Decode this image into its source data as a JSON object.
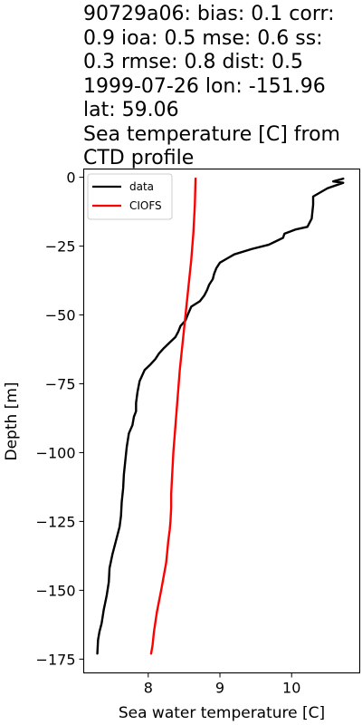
{
  "title_lines": [
    "90729a06: bias: 0.1  corr:",
    "0.9  ioa: 0.5  mse: 0.6  ss:",
    "0.3  rmse: 0.8  dist: 0.5",
    "1999-07-26 lon: -151.96",
    "lat: 59.06",
    "Sea temperature [C] from",
    "CTD profile"
  ],
  "chart_data": {
    "type": "line",
    "title": "90729a06: bias: 0.1  corr: 0.9  ioa: 0.5  mse: 0.6  ss: 0.3  rmse: 0.8  dist: 0.5 1999-07-26 lon: -151.96 lat: 59.06 Sea temperature [C] from CTD profile",
    "xlabel": "Sea water temperature [C]",
    "ylabel": "Depth [m]",
    "xlim": [
      7.1,
      10.95
    ],
    "ylim": [
      -180,
      3
    ],
    "xticks": [
      8,
      9,
      10
    ],
    "xtick_labels": [
      "8",
      "9",
      "10"
    ],
    "yticks": [
      0,
      -25,
      -50,
      -75,
      -100,
      -125,
      -150,
      -175
    ],
    "ytick_labels": [
      "0",
      "−25",
      "−50",
      "−75",
      "−100",
      "−125",
      "−150",
      "−175"
    ],
    "grid": false,
    "legend_position": "upper left",
    "series": [
      {
        "name": "data",
        "color": "#000000",
        "x": [
          10.72,
          10.58,
          10.72,
          10.5,
          10.3,
          10.3,
          10.28,
          10.22,
          10.05,
          9.9,
          9.88,
          9.8,
          9.68,
          9.45,
          9.2,
          9.1,
          9.0,
          8.95,
          8.92,
          8.9,
          8.85,
          8.82,
          8.78,
          8.72,
          8.6,
          8.55,
          8.52,
          8.45,
          8.42,
          8.38,
          8.3,
          8.22,
          8.15,
          8.1,
          8.03,
          7.95,
          7.88,
          7.85,
          7.83,
          7.83,
          7.8,
          7.78,
          7.73,
          7.7,
          7.68,
          7.66,
          7.65,
          7.63,
          7.62,
          7.6,
          7.55,
          7.5,
          7.46,
          7.45,
          7.42,
          7.38,
          7.35,
          7.32,
          7.3,
          7.29
        ],
        "y": [
          -0.5,
          -1.5,
          -2.0,
          -4.0,
          -7.0,
          -10.0,
          -15.0,
          -18.0,
          -19.0,
          -20.5,
          -22.0,
          -23.0,
          -24.5,
          -26.0,
          -28.0,
          -29.5,
          -31.0,
          -33.0,
          -35.0,
          -37.0,
          -39.0,
          -41.0,
          -43.0,
          -45.0,
          -47.0,
          -50.0,
          -52.0,
          -54.0,
          -56.0,
          -58.0,
          -60.0,
          -62.0,
          -64.0,
          -66.0,
          -68.0,
          -70.0,
          -74.0,
          -78.0,
          -82.0,
          -85.0,
          -87.0,
          -90.0,
          -93.0,
          -98.0,
          -103.0,
          -108.0,
          -113.0,
          -118.0,
          -123.0,
          -127.0,
          -132.0,
          -137.0,
          -142.0,
          -147.0,
          -152.0,
          -157.0,
          -162.0,
          -165.0,
          -168.0,
          -173.0
        ]
      },
      {
        "name": "CIOFS",
        "color": "#ff0000",
        "x": [
          8.66,
          8.65,
          8.63,
          8.6,
          8.56,
          8.52,
          8.48,
          8.44,
          8.41,
          8.38,
          8.35,
          8.34,
          8.33,
          8.32,
          8.32,
          8.31,
          8.3,
          8.29,
          8.28,
          8.25,
          8.18,
          8.12,
          8.08,
          8.06,
          8.04
        ],
        "y": [
          -0.5,
          -10.0,
          -20.0,
          -30.0,
          -40.0,
          -50.0,
          -60.0,
          -70.0,
          -80.0,
          -90.0,
          -100.0,
          -105.0,
          -110.0,
          -115.0,
          -120.0,
          -125.0,
          -128.0,
          -130.0,
          -132.0,
          -140.0,
          -150.0,
          -158.0,
          -165.0,
          -170.0,
          -173.0
        ]
      }
    ]
  }
}
